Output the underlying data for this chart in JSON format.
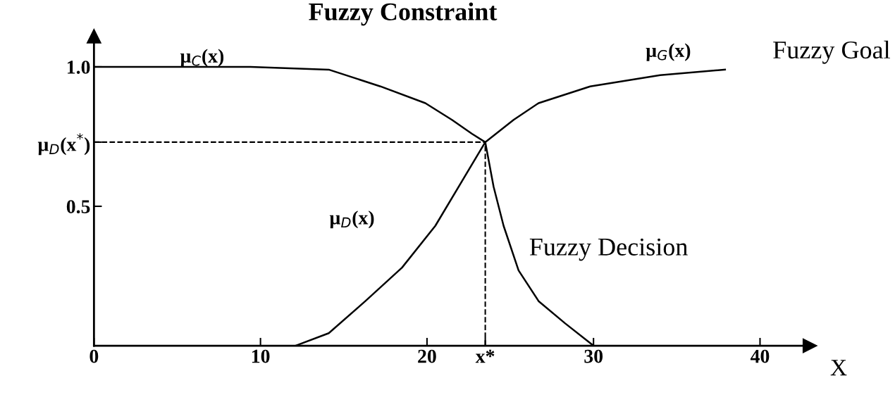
{
  "chart_data": {
    "type": "line",
    "xlabel": "X",
    "xlim": [
      0,
      43
    ],
    "ylim": [
      0,
      1.11
    ],
    "xticks": [
      0,
      10,
      20,
      {
        "value": 23.5,
        "label": "x*"
      },
      30,
      40
    ],
    "yticks": [
      {
        "value": 0.73,
        "label": "μ$_{D}$(x$^{*}$)"
      },
      0.5,
      {
        "value": 1.0,
        "label": "1.0"
      }
    ],
    "grid": false,
    "marker": "none",
    "line_style": "solid",
    "series": [
      {
        "name": "μ$_{C}$(x)",
        "color": "#000000",
        "x": [
          0,
          9.4,
          14.1,
          17.2,
          19.9,
          21.5,
          22.7,
          23.5
        ],
        "values": [
          1.0,
          1.0,
          0.99,
          0.93,
          0.87,
          0.81,
          0.76,
          0.73
        ]
      },
      {
        "name": "μ$_{G}$(x)",
        "color": "#000000",
        "x": [
          23.5,
          25.2,
          26.7,
          29.8,
          34.0,
          37.9
        ],
        "values": [
          0.73,
          0.81,
          0.87,
          0.93,
          0.97,
          0.99
        ]
      },
      {
        "name": "μ$_{D}$(x)",
        "color": "#000000",
        "x": [
          12.1,
          14.1,
          16.3,
          18.5,
          20.5,
          22.1,
          23.5,
          24.0,
          24.6,
          25.5,
          26.7,
          28.3,
          30.0
        ],
        "values": [
          0,
          0.045,
          0.16,
          0.28,
          0.43,
          0.59,
          0.73,
          0.57,
          0.43,
          0.27,
          0.16,
          0.08,
          0
        ]
      }
    ],
    "ref_lines": [
      {
        "axis": "y",
        "value": 0.73,
        "line_style": "dashed",
        "color": "#000000"
      },
      {
        "axis": "x",
        "value": 23.5,
        "line_style": "dashed",
        "color": "#000000"
      }
    ],
    "annotations": [
      "Fuzzy Constraint",
      "Fuzzy Goal",
      "Fuzzy Decision"
    ]
  }
}
